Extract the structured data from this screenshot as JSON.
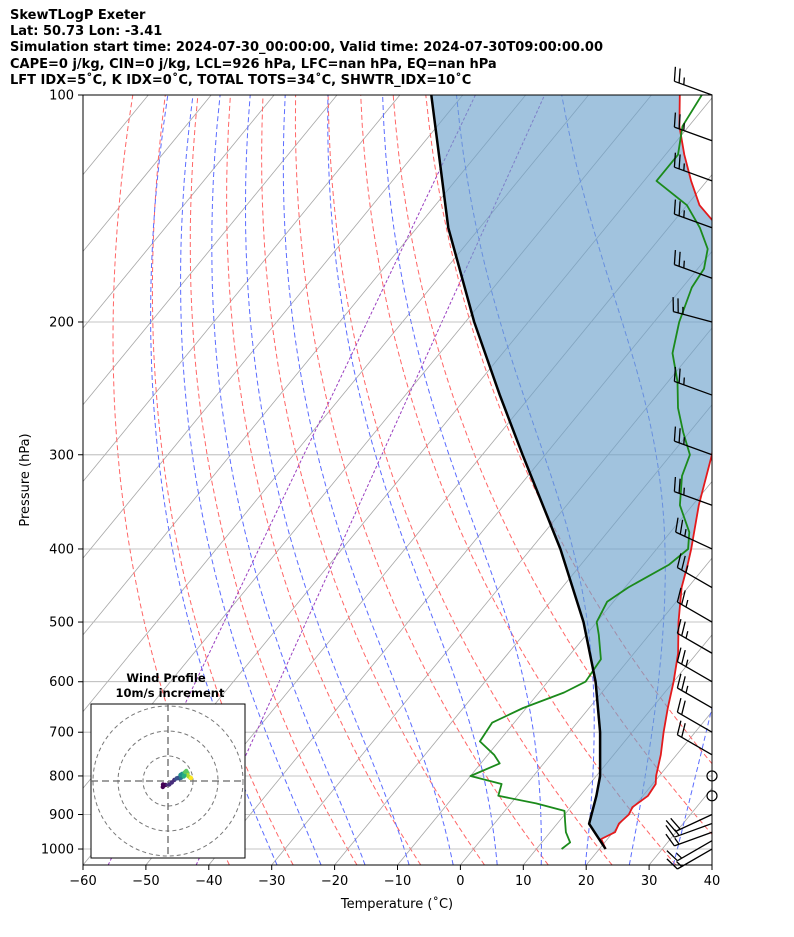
{
  "header": {
    "line1": "SkewTLogP Exeter",
    "line2": "Lat: 50.73   Lon: -3.41",
    "line3": "Simulation start time: 2024-07-30_00:00:00, Valid time: 2024-07-30T09:00:00.00",
    "line4": "CAPE=0 j/kg, CIN=0 j/kg, LCL=926 hPa, LFC=nan hPa, EQ=nan hPa",
    "line5": "LFT IDX=5˚C, K IDX=0˚C, TOTAL TOTS=34˚C, SHWTR_IDX=10˚C"
  },
  "chart_data": [
    {
      "type": "line",
      "subtype": "skew-t log-p",
      "xlabel": "Temperature (˚C)",
      "ylabel": "Pressure (hPa)",
      "xlim": [
        -60,
        40
      ],
      "ylim": [
        1050,
        100
      ],
      "y_scale": "log",
      "x_ticks": [
        -60,
        -50,
        -40,
        -30,
        -20,
        -10,
        0,
        10,
        20,
        30,
        40
      ],
      "x_tick_labels": [
        "−60",
        "−50",
        "−40",
        "−30",
        "−20",
        "−10",
        "0",
        "10",
        "20",
        "30",
        "40"
      ],
      "y_ticks": [
        1000,
        900,
        800,
        700,
        600,
        500,
        400,
        300,
        200,
        100
      ],
      "grid": true,
      "series": [
        {
          "role": "temperature",
          "color": "#e41a1c",
          "points": [
            [
              1000,
              21
            ],
            [
              970,
              19
            ],
            [
              950,
              20.3
            ],
            [
              925,
              19.8
            ],
            [
              900,
              20.2
            ],
            [
              880,
              19.8
            ],
            [
              850,
              20.8
            ],
            [
              820,
              20.5
            ],
            [
              800,
              19.5
            ],
            [
              750,
              17.5
            ],
            [
              700,
              15
            ],
            [
              650,
              12.5
            ],
            [
              600,
              10
            ],
            [
              550,
              7
            ],
            [
              500,
              3
            ],
            [
              450,
              -1
            ],
            [
              420,
              -3
            ],
            [
              400,
              -4.5
            ],
            [
              350,
              -9
            ],
            [
              300,
              -13.5
            ],
            [
              270,
              -17
            ],
            [
              250,
              -20
            ],
            [
              230,
              -23
            ],
            [
              210,
              -27.5
            ],
            [
              200,
              -30.5
            ],
            [
              190,
              -32
            ],
            [
              170,
              -33.5
            ],
            [
              160,
              -37
            ],
            [
              150,
              -42
            ],
            [
              140,
              -48
            ],
            [
              130,
              -52.5
            ],
            [
              120,
              -57
            ],
            [
              110,
              -61.5
            ],
            [
              100,
              -65.5
            ]
          ]
        },
        {
          "role": "dewpoint",
          "color": "#1b8a1b",
          "points": [
            [
              1000,
              14
            ],
            [
              980,
              14.5
            ],
            [
              950,
              12.5
            ],
            [
              920,
              11
            ],
            [
              890,
              9.5
            ],
            [
              870,
              4
            ],
            [
              850,
              -3
            ],
            [
              820,
              -4
            ],
            [
              800,
              -10
            ],
            [
              770,
              -7
            ],
            [
              750,
              -9
            ],
            [
              720,
              -13
            ],
            [
              680,
              -13.5
            ],
            [
              650,
              -10.5
            ],
            [
              620,
              -6
            ],
            [
              600,
              -4
            ],
            [
              560,
              -4.5
            ],
            [
              520,
              -8
            ],
            [
              500,
              -10
            ],
            [
              470,
              -11
            ],
            [
              450,
              -9.5
            ],
            [
              420,
              -6
            ],
            [
              400,
              -5
            ],
            [
              380,
              -7
            ],
            [
              350,
              -12
            ],
            [
              320,
              -15.5
            ],
            [
              300,
              -17
            ],
            [
              280,
              -21
            ],
            [
              260,
              -25
            ],
            [
              240,
              -28.5
            ],
            [
              220,
              -33
            ],
            [
              200,
              -36
            ],
            [
              180,
              -38.5
            ],
            [
              170,
              -39
            ],
            [
              160,
              -41
            ],
            [
              150,
              -45
            ],
            [
              140,
              -50
            ],
            [
              130,
              -58
            ],
            [
              120,
              -58
            ],
            [
              110,
              -61
            ],
            [
              100,
              -62
            ]
          ]
        },
        {
          "role": "parcel",
          "color": "#000000",
          "points": [
            [
              1000,
              21
            ],
            [
              926,
              15.1
            ],
            [
              850,
              12.6
            ],
            [
              800,
              10.6
            ],
            [
              700,
              4.9
            ],
            [
              600,
              -2.4
            ],
            [
              500,
              -12.1
            ],
            [
              400,
              -25.3
            ],
            [
              300,
              -43.6
            ],
            [
              250,
              -55
            ],
            [
              200,
              -68.6
            ],
            [
              150,
              -85
            ],
            [
              100,
              -105
            ]
          ]
        }
      ],
      "shading": {
        "between": [
          "parcel",
          "temperature"
        ],
        "color": "#6fa3cd"
      },
      "reference_lines": {
        "isotherms_color": "#a6a6a6",
        "dry_adiabats_color": "#ff6666",
        "moist_adiabats_color": "#5b6cff",
        "mixing_ratio_color": "#9a3fc0",
        "moist_adiabats_k": [
          244,
          251,
          258,
          265,
          272,
          279,
          286,
          293,
          300,
          307,
          314,
          321
        ],
        "dry_adiabats_c": [
          -40,
          -30,
          -20,
          -10,
          0,
          10,
          20,
          30,
          40,
          50
        ]
      },
      "wind_barbs": {
        "color": "#000000",
        "levels": [
          [
            1000,
            "15 kt",
            240
          ],
          [
            975,
            "15 kt",
            240
          ],
          [
            950,
            "15 kt",
            250
          ],
          [
            925,
            "15 kt",
            250
          ],
          [
            900,
            "20 kt",
            245
          ],
          [
            850,
            "calm",
            0
          ],
          [
            800,
            "calm",
            0
          ],
          [
            750,
            "20 kt",
            300
          ],
          [
            700,
            "20 kt",
            300
          ],
          [
            650,
            "25 kt",
            300
          ],
          [
            600,
            "25 kt",
            300
          ],
          [
            550,
            "25 kt",
            300
          ],
          [
            500,
            "25 kt",
            300
          ],
          [
            450,
            "25 kt",
            300
          ],
          [
            400,
            "25 kt",
            295
          ],
          [
            350,
            "25 kt",
            290
          ],
          [
            300,
            "25 kt",
            290
          ],
          [
            250,
            "25 kt",
            290
          ],
          [
            200,
            "25 kt",
            285
          ],
          [
            175,
            "25 kt",
            290
          ],
          [
            150,
            "25 kt",
            290
          ],
          [
            130,
            "25 kt",
            290
          ],
          [
            115,
            "25 kt",
            290
          ],
          [
            100,
            "25 kt",
            290
          ]
        ]
      }
    },
    {
      "type": "scatter",
      "subtype": "hodograph",
      "title": "Wind Profile",
      "subtitle": "10m/s increment",
      "rings_ms": [
        10,
        20,
        30
      ],
      "colormap": "viridis",
      "u_v_points": [
        [
          -2.1,
          -2.4
        ],
        [
          -2.0,
          -1.4
        ],
        [
          -1.0,
          -1.6
        ],
        [
          0.5,
          -1.4
        ],
        [
          1.5,
          -0.6
        ],
        [
          2.5,
          0.4
        ],
        [
          3.5,
          1.1
        ],
        [
          4.2,
          1.3
        ],
        [
          4.5,
          1.1
        ],
        [
          5.2,
          1.3
        ],
        [
          6.0,
          2.0
        ],
        [
          5.5,
          2.5
        ],
        [
          5.0,
          2.4
        ],
        [
          5.6,
          2.8
        ],
        [
          5.9,
          2.7
        ],
        [
          6.3,
          1.8
        ],
        [
          7.0,
          2.5
        ],
        [
          6.5,
          3.2
        ],
        [
          6.9,
          3.6
        ],
        [
          7.3,
          4.0
        ],
        [
          7.8,
          3.2
        ],
        [
          8.2,
          1.9
        ],
        [
          8.9,
          1.3
        ],
        [
          9.2,
          1.2
        ]
      ]
    }
  ]
}
